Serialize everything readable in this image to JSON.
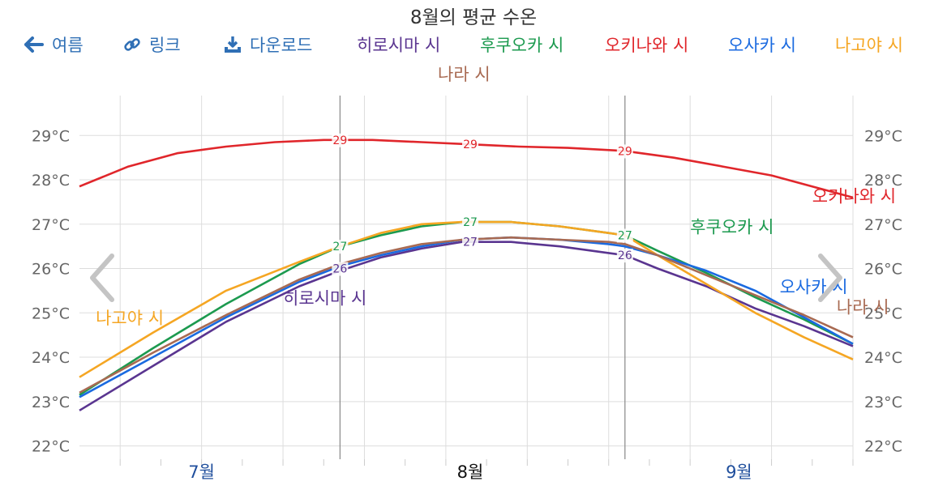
{
  "toolbar": {
    "back_label": "여름",
    "link_label": "링크",
    "download_label": "다운로드"
  },
  "colors": {
    "toolbar": "#2f6fb5",
    "grid": "#dddddd",
    "axis_text": "#666666",
    "month_label": "#1f4e9c",
    "month_label_current": "#111111"
  },
  "chart_data": {
    "type": "line",
    "title": "8월의 평균 수온",
    "x_unit": "day_of_year",
    "xlim": [
      176,
      271
    ],
    "ylim": [
      21.7,
      29.9
    ],
    "y_ticks": [
      {
        "value": 22,
        "label": "22°C"
      },
      {
        "value": 23,
        "label": "23°C"
      },
      {
        "value": 24,
        "label": "24°C"
      },
      {
        "value": 25,
        "label": "25°C"
      },
      {
        "value": 26,
        "label": "26°C"
      },
      {
        "value": 27,
        "label": "27°C"
      },
      {
        "value": 28,
        "label": "28°C"
      },
      {
        "value": 29,
        "label": "29°C"
      }
    ],
    "month_labels": [
      {
        "label": "7월",
        "x": 191,
        "current": false
      },
      {
        "label": "8월",
        "x": 224,
        "current": true
      },
      {
        "label": "9월",
        "x": 257,
        "current": false
      }
    ],
    "reference_lines": [
      208,
      243
    ],
    "grid": true,
    "legend_placement": "top",
    "series": [
      {
        "name": "히로시마 시",
        "color": "#5a3590",
        "x": [
          176,
          185,
          194,
          203,
          208,
          213,
          218,
          223,
          229,
          235,
          241,
          243,
          247,
          253,
          259,
          265,
          271
        ],
        "y": [
          22.8,
          23.8,
          24.8,
          25.6,
          25.95,
          26.25,
          26.45,
          26.6,
          26.6,
          26.5,
          26.35,
          26.3,
          26.0,
          25.6,
          25.1,
          24.7,
          24.25
        ],
        "labels": [
          {
            "x": 208,
            "y": 26.0,
            "text": "26"
          },
          {
            "x": 224,
            "y": 26.6,
            "text": "27"
          },
          {
            "x": 243,
            "y": 26.3,
            "text": "26"
          }
        ],
        "name_label": {
          "x": 201,
          "y": 25.2
        }
      },
      {
        "name": "후쿠오카 시",
        "color": "#1c9a4f",
        "x": [
          176,
          185,
          194,
          203,
          208,
          213,
          218,
          223,
          229,
          235,
          241,
          243,
          247,
          253,
          259,
          265,
          271
        ],
        "y": [
          23.15,
          24.2,
          25.2,
          26.1,
          26.5,
          26.75,
          26.95,
          27.05,
          27.05,
          26.95,
          26.8,
          26.75,
          26.4,
          25.9,
          25.35,
          24.85,
          24.3
        ],
        "labels": [
          {
            "x": 208,
            "y": 26.5,
            "text": "27"
          },
          {
            "x": 224,
            "y": 27.05,
            "text": "27"
          },
          {
            "x": 243,
            "y": 26.75,
            "text": "27"
          }
        ],
        "name_label": {
          "x": 251,
          "y": 26.8
        }
      },
      {
        "name": "오키나와 시",
        "color": "#e0262b",
        "x": [
          176,
          182,
          188,
          194,
          200,
          206,
          212,
          218,
          224,
          230,
          236,
          243,
          249,
          255,
          261,
          266,
          271
        ],
        "y": [
          27.85,
          28.3,
          28.6,
          28.75,
          28.85,
          28.9,
          28.9,
          28.85,
          28.8,
          28.75,
          28.72,
          28.65,
          28.5,
          28.3,
          28.1,
          27.85,
          27.6
        ],
        "labels": [
          {
            "x": 208,
            "y": 28.9,
            "text": "29"
          },
          {
            "x": 224,
            "y": 28.8,
            "text": "29"
          },
          {
            "x": 243,
            "y": 28.65,
            "text": "29"
          }
        ],
        "name_label": {
          "x": 266,
          "y": 27.5
        }
      },
      {
        "name": "오사카 시",
        "color": "#1a6ae0",
        "x": [
          176,
          185,
          194,
          203,
          208,
          213,
          218,
          223,
          229,
          235,
          241,
          243,
          247,
          253,
          259,
          265,
          271
        ],
        "y": [
          23.1,
          24.0,
          24.9,
          25.7,
          26.05,
          26.3,
          26.5,
          26.65,
          26.7,
          26.65,
          26.55,
          26.5,
          26.3,
          25.95,
          25.5,
          24.9,
          24.3
        ],
        "labels": [],
        "name_label": {
          "x": 262,
          "y": 25.45
        }
      },
      {
        "name": "나고야 시",
        "color": "#f5a623",
        "x": [
          176,
          185,
          194,
          203,
          208,
          213,
          218,
          223,
          229,
          235,
          241,
          243,
          247,
          253,
          259,
          265,
          271
        ],
        "y": [
          23.55,
          24.55,
          25.5,
          26.15,
          26.5,
          26.8,
          27.0,
          27.05,
          27.05,
          26.95,
          26.8,
          26.75,
          26.3,
          25.65,
          25.0,
          24.45,
          23.95
        ],
        "labels": [],
        "name_label": {
          "x": 178,
          "y": 24.75
        }
      },
      {
        "name": "나라 시",
        "color": "#a86a52",
        "x": [
          176,
          185,
          194,
          203,
          208,
          213,
          218,
          223,
          229,
          235,
          241,
          243,
          247,
          253,
          259,
          265,
          271
        ],
        "y": [
          23.2,
          24.1,
          24.95,
          25.75,
          26.1,
          26.35,
          26.55,
          26.65,
          26.7,
          26.65,
          26.6,
          26.55,
          26.3,
          25.85,
          25.4,
          24.95,
          24.45
        ],
        "labels": [],
        "name_label": {
          "x": 269,
          "y": 25.0
        }
      }
    ]
  }
}
